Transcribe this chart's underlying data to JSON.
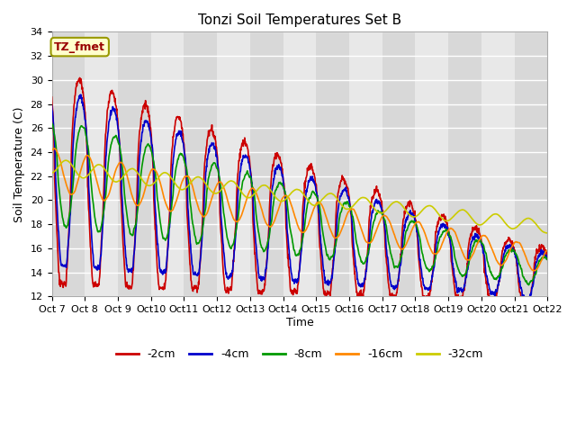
{
  "title": "Tonzi Soil Temperatures Set B",
  "xlabel": "Time",
  "ylabel": "Soil Temperature (C)",
  "ylim": [
    12,
    34
  ],
  "yticks": [
    12,
    14,
    16,
    18,
    20,
    22,
    24,
    26,
    28,
    30,
    32,
    34
  ],
  "x_labels": [
    "Oct 7",
    "Oct 8",
    "Oct 9",
    "Oct 10",
    "Oct 11",
    "Oct 12",
    "Oct 13",
    "Oct 14",
    "Oct 15",
    "Oct 16",
    "Oct 17",
    "Oct 18",
    "Oct 19",
    "Oct 20",
    "Oct 21",
    "Oct 22"
  ],
  "legend_labels": [
    "-2cm",
    "-4cm",
    "-8cm",
    "-16cm",
    "-32cm"
  ],
  "line_colors": [
    "#cc0000",
    "#0000cc",
    "#009900",
    "#ff8800",
    "#cccc00"
  ],
  "annotation_text": "TZ_fmet",
  "annotation_color": "#990000",
  "annotation_bg": "#ffffcc",
  "annotation_border": "#999900",
  "plot_bg_light": "#e8e8e8",
  "plot_bg_dark": "#d8d8d8",
  "grid_color": "#ffffff",
  "figwidth": 6.4,
  "figheight": 4.8,
  "dpi": 100
}
